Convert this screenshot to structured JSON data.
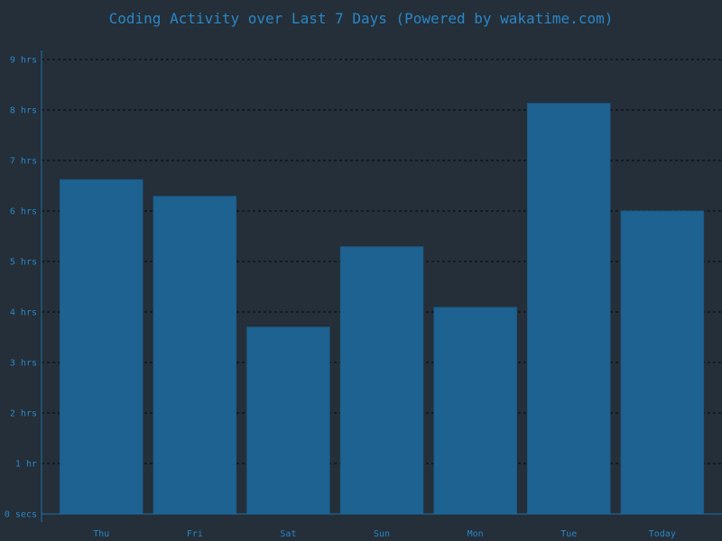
{
  "chart_data": {
    "type": "bar",
    "title": "Coding Activity over Last 7 Days (Powered by wakatime.com)",
    "categories": [
      "Thu",
      "Fri",
      "Sat",
      "Sun",
      "Mon",
      "Tue",
      "Today"
    ],
    "values": [
      6.62,
      6.29,
      3.7,
      5.29,
      4.09,
      8.13,
      6.0
    ],
    "value_unit": "hours",
    "ylim": [
      0,
      9
    ],
    "y_ticks": [
      0,
      1,
      2,
      3,
      4,
      5,
      6,
      7,
      8,
      9
    ],
    "y_tick_labels": [
      "0 secs",
      "1 hr",
      "2 hrs",
      "3 hrs",
      "4 hrs",
      "5 hrs",
      "6 hrs",
      "7 hrs",
      "8 hrs",
      "9 hrs"
    ],
    "xlabel": "",
    "ylabel": "",
    "grid": true,
    "legend": "none",
    "colors": {
      "background": "#242f39",
      "bar": "#1e6292",
      "text": "#2b86c6",
      "grid": "#0f151a",
      "axis": "#1f6fa8"
    }
  }
}
